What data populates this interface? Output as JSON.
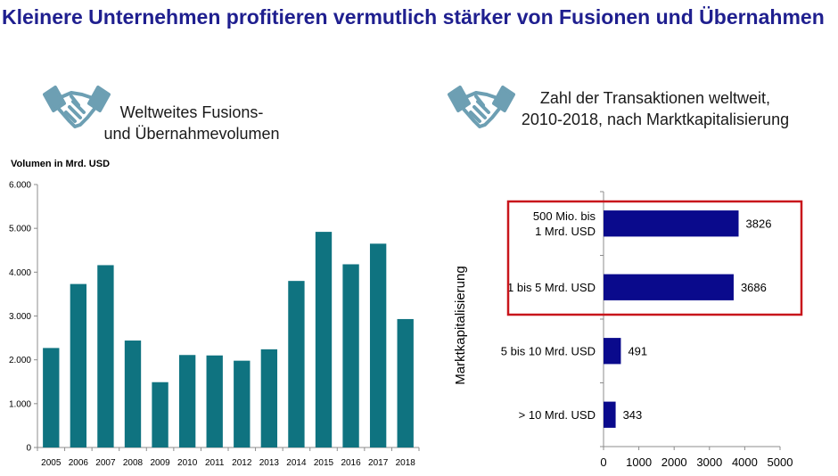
{
  "page": {
    "title": "Kleinere Unternehmen profitieren vermutlich stärker von Fusionen und Übernahmen"
  },
  "left_panel": {
    "heading_line1": "Weltweites Fusions-",
    "heading_line2": "und Übernahmevolumen",
    "icon": "handshake-icon"
  },
  "right_panel": {
    "heading_line1": "Zahl der Transaktionen weltweit,",
    "heading_line2": "2010-2018, nach Marktkapitalisierung",
    "icon": "handshake-icon"
  },
  "colors": {
    "title": "#1f1f8f",
    "teal_bar": "#0f7380",
    "navy_bar": "#0a0a8c",
    "highlight_box": "#c8151b",
    "icon": "#6d9fb3"
  },
  "chart_data": [
    {
      "type": "bar",
      "title": "Weltweites Fusions- und Übernahmevolumen",
      "ylabel": "Volumen in Mrd. USD",
      "xlabel": "",
      "categories": [
        "2005",
        "2006",
        "2007",
        "2008",
        "2009",
        "2010",
        "2011",
        "2012",
        "2013",
        "2014",
        "2015",
        "2016",
        "2017",
        "2018"
      ],
      "values": [
        2270,
        3730,
        4160,
        2440,
        1490,
        2110,
        2100,
        1980,
        2240,
        3800,
        4920,
        4180,
        4650,
        2930
      ],
      "ylim": [
        0,
        6000
      ],
      "yticks": [
        "0",
        "1.000",
        "2.000",
        "3.000",
        "4.000",
        "5.000",
        "6.000"
      ],
      "ytick_values": [
        0,
        1000,
        2000,
        3000,
        4000,
        5000,
        6000
      ],
      "grid": false
    },
    {
      "type": "bar",
      "orientation": "horizontal",
      "title": "Zahl der Transaktionen weltweit, 2010-2018, nach Marktkapitalisierung",
      "ylabel": "Marktkapitalisierung",
      "xlabel": "",
      "categories": [
        [
          "500 Mio. bis",
          "1 Mrd. USD"
        ],
        [
          "1 bis 5 Mrd. USD"
        ],
        [
          "5 bis 10 Mrd. USD"
        ],
        [
          "> 10 Mrd. USD"
        ]
      ],
      "values": [
        3826,
        3686,
        491,
        343
      ],
      "data_labels": [
        "3826",
        "3686",
        "491",
        "343"
      ],
      "xlim": [
        0,
        5000
      ],
      "xticks": [
        "0",
        "1000",
        "2000",
        "3000",
        "4000",
        "5000"
      ],
      "xtick_values": [
        0,
        1000,
        2000,
        3000,
        4000,
        5000
      ],
      "highlighted_categories": [
        0,
        1
      ],
      "grid": false
    }
  ]
}
